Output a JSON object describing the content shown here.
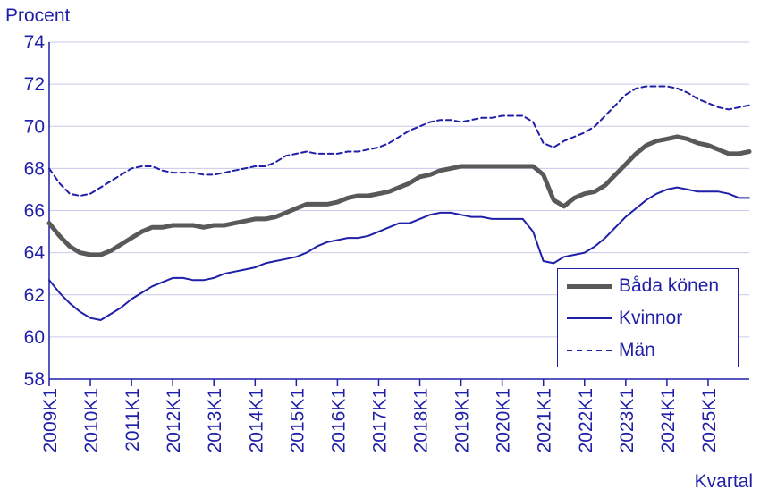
{
  "chart_data": {
    "type": "line",
    "ylabel": "Procent",
    "xlabel": "Kvartal",
    "ylim": [
      58,
      74
    ],
    "yticks": [
      58,
      60,
      62,
      64,
      66,
      68,
      70,
      72,
      74
    ],
    "xtick_labels": [
      "2009K1",
      "2010K1",
      "2011K1",
      "2012K1",
      "2013K1",
      "2014K1",
      "2015K1",
      "2016K1",
      "2017K1",
      "2018K1",
      "2019K1",
      "2020K1",
      "2021K1",
      "2022K1",
      "2023K1",
      "2024K1",
      "2025K1"
    ],
    "grid": "horizontal",
    "legend_position": "bottom-right",
    "x_start": "2009K1",
    "x_end": "2025K1",
    "series": [
      {
        "name": "Båda könen",
        "color": "#595959",
        "style": "solid-thick",
        "values": [
          65.4,
          64.8,
          64.3,
          64.0,
          63.9,
          63.9,
          64.1,
          64.4,
          64.7,
          65.0,
          65.2,
          65.2,
          65.3,
          65.3,
          65.3,
          65.2,
          65.3,
          65.3,
          65.4,
          65.5,
          65.6,
          65.6,
          65.7,
          65.9,
          66.1,
          66.3,
          66.3,
          66.3,
          66.4,
          66.6,
          66.7,
          66.7,
          66.8,
          66.9,
          67.1,
          67.3,
          67.6,
          67.7,
          67.9,
          68.0,
          68.1,
          68.1,
          68.1,
          68.1,
          68.1,
          68.1,
          68.1,
          68.1,
          67.7,
          66.5,
          66.2,
          66.6,
          66.8,
          66.9,
          67.2,
          67.7,
          68.2,
          68.7,
          69.1,
          69.3,
          69.4,
          69.5,
          69.4,
          69.2,
          69.1,
          68.9,
          68.7,
          68.7,
          68.8
        ]
      },
      {
        "name": "Kvinnor",
        "color": "#1f1fa8",
        "style": "solid",
        "values": [
          62.7,
          62.1,
          61.6,
          61.2,
          60.9,
          60.8,
          61.1,
          61.4,
          61.8,
          62.1,
          62.4,
          62.6,
          62.8,
          62.8,
          62.7,
          62.7,
          62.8,
          63.0,
          63.1,
          63.2,
          63.3,
          63.5,
          63.6,
          63.7,
          63.8,
          64.0,
          64.3,
          64.5,
          64.6,
          64.7,
          64.7,
          64.8,
          65.0,
          65.2,
          65.4,
          65.4,
          65.6,
          65.8,
          65.9,
          65.9,
          65.8,
          65.7,
          65.7,
          65.6,
          65.6,
          65.6,
          65.6,
          65.0,
          63.6,
          63.5,
          63.8,
          63.9,
          64.0,
          64.3,
          64.7,
          65.2,
          65.7,
          66.1,
          66.5,
          66.8,
          67.0,
          67.1,
          67.0,
          66.9,
          66.9,
          66.9,
          66.8,
          66.6,
          66.6
        ]
      },
      {
        "name": "Män",
        "color": "#1f1fa8",
        "style": "dashed",
        "values": [
          68.0,
          67.3,
          66.8,
          66.7,
          66.8,
          67.1,
          67.4,
          67.7,
          68.0,
          68.1,
          68.1,
          67.9,
          67.8,
          67.8,
          67.8,
          67.7,
          67.7,
          67.8,
          67.9,
          68.0,
          68.1,
          68.1,
          68.3,
          68.6,
          68.7,
          68.8,
          68.7,
          68.7,
          68.7,
          68.8,
          68.8,
          68.9,
          69.0,
          69.2,
          69.5,
          69.8,
          70.0,
          70.2,
          70.3,
          70.3,
          70.2,
          70.3,
          70.4,
          70.4,
          70.5,
          70.5,
          70.5,
          70.2,
          69.2,
          69.0,
          69.3,
          69.5,
          69.7,
          70.0,
          70.5,
          71.0,
          71.5,
          71.8,
          71.9,
          71.9,
          71.9,
          71.8,
          71.6,
          71.3,
          71.1,
          70.9,
          70.8,
          70.9,
          71.0
        ]
      }
    ]
  }
}
